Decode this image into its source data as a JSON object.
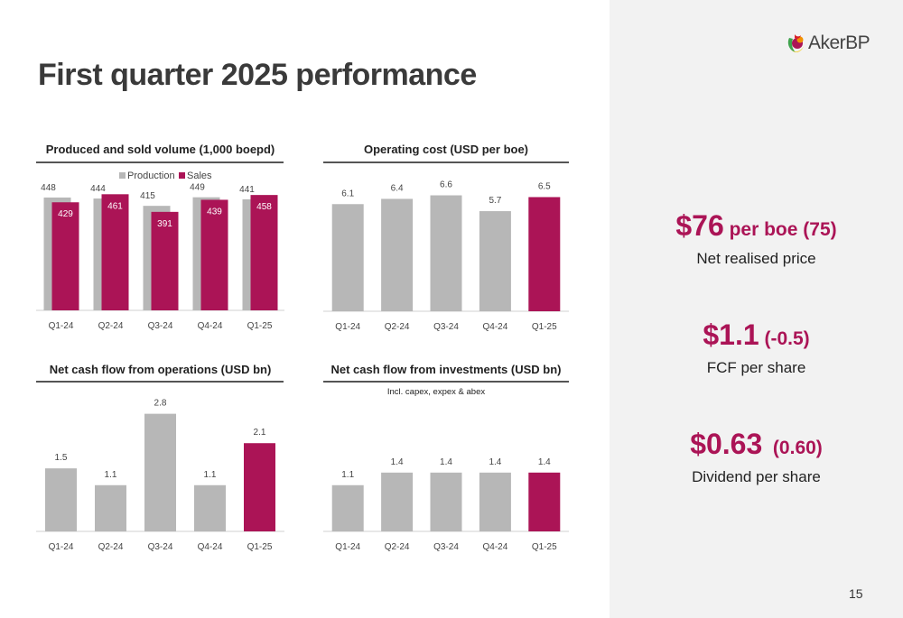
{
  "page": {
    "title": "First quarter 2025 performance",
    "page_number": "15",
    "logo_text": "AkerBP"
  },
  "colors": {
    "highlight": "#ab1456",
    "bar_gray": "#b7b7b7",
    "rule": "#555555",
    "panel": "#f2f2f2"
  },
  "kpis": [
    {
      "main": "$76",
      "rest": " per boe (75)",
      "label": "Net realised price"
    },
    {
      "main": "$1.1",
      "rest": " (-0.5)",
      "label": "FCF per share"
    },
    {
      "main": "$0.63",
      "rest": "  (0.60)",
      "label": "Dividend per share"
    }
  ],
  "chart_data": [
    {
      "type": "bar",
      "title": "Produced and sold volume (1,000 boepd)",
      "categories": [
        "Q1-24",
        "Q2-24",
        "Q3-24",
        "Q4-24",
        "Q1-25"
      ],
      "series": [
        {
          "name": "Production",
          "values": [
            448,
            444,
            415,
            449,
            441
          ],
          "color": "#b7b7b7"
        },
        {
          "name": "Sales",
          "values": [
            429,
            461,
            391,
            439,
            458
          ],
          "color": "#ab1456"
        }
      ],
      "ylim": [
        0,
        480
      ],
      "legend": "top-center",
      "grid": false
    },
    {
      "type": "bar",
      "title": "Operating cost (USD per boe)",
      "categories": [
        "Q1-24",
        "Q2-24",
        "Q3-24",
        "Q4-24",
        "Q1-25"
      ],
      "values": [
        6.1,
        6.4,
        6.6,
        5.7,
        6.5
      ],
      "highlight_last": true,
      "ylim": [
        0,
        7.5
      ],
      "grid": false
    },
    {
      "type": "bar",
      "title": "Net cash flow from operations (USD bn)",
      "categories": [
        "Q1-24",
        "Q2-24",
        "Q3-24",
        "Q4-24",
        "Q1-25"
      ],
      "values": [
        1.5,
        1.1,
        2.8,
        1.1,
        2.1
      ],
      "highlight_last": true,
      "ylim": [
        0,
        3.2
      ],
      "grid": false
    },
    {
      "type": "bar",
      "title": "Net cash flow from investments (USD bn)",
      "subtitle": "Incl. capex, expex & abex",
      "categories": [
        "Q1-24",
        "Q2-24",
        "Q3-24",
        "Q4-24",
        "Q1-25"
      ],
      "values": [
        1.1,
        1.4,
        1.4,
        1.4,
        1.4
      ],
      "highlight_last": true,
      "ylim": [
        0,
        3.2
      ],
      "grid": false
    }
  ]
}
